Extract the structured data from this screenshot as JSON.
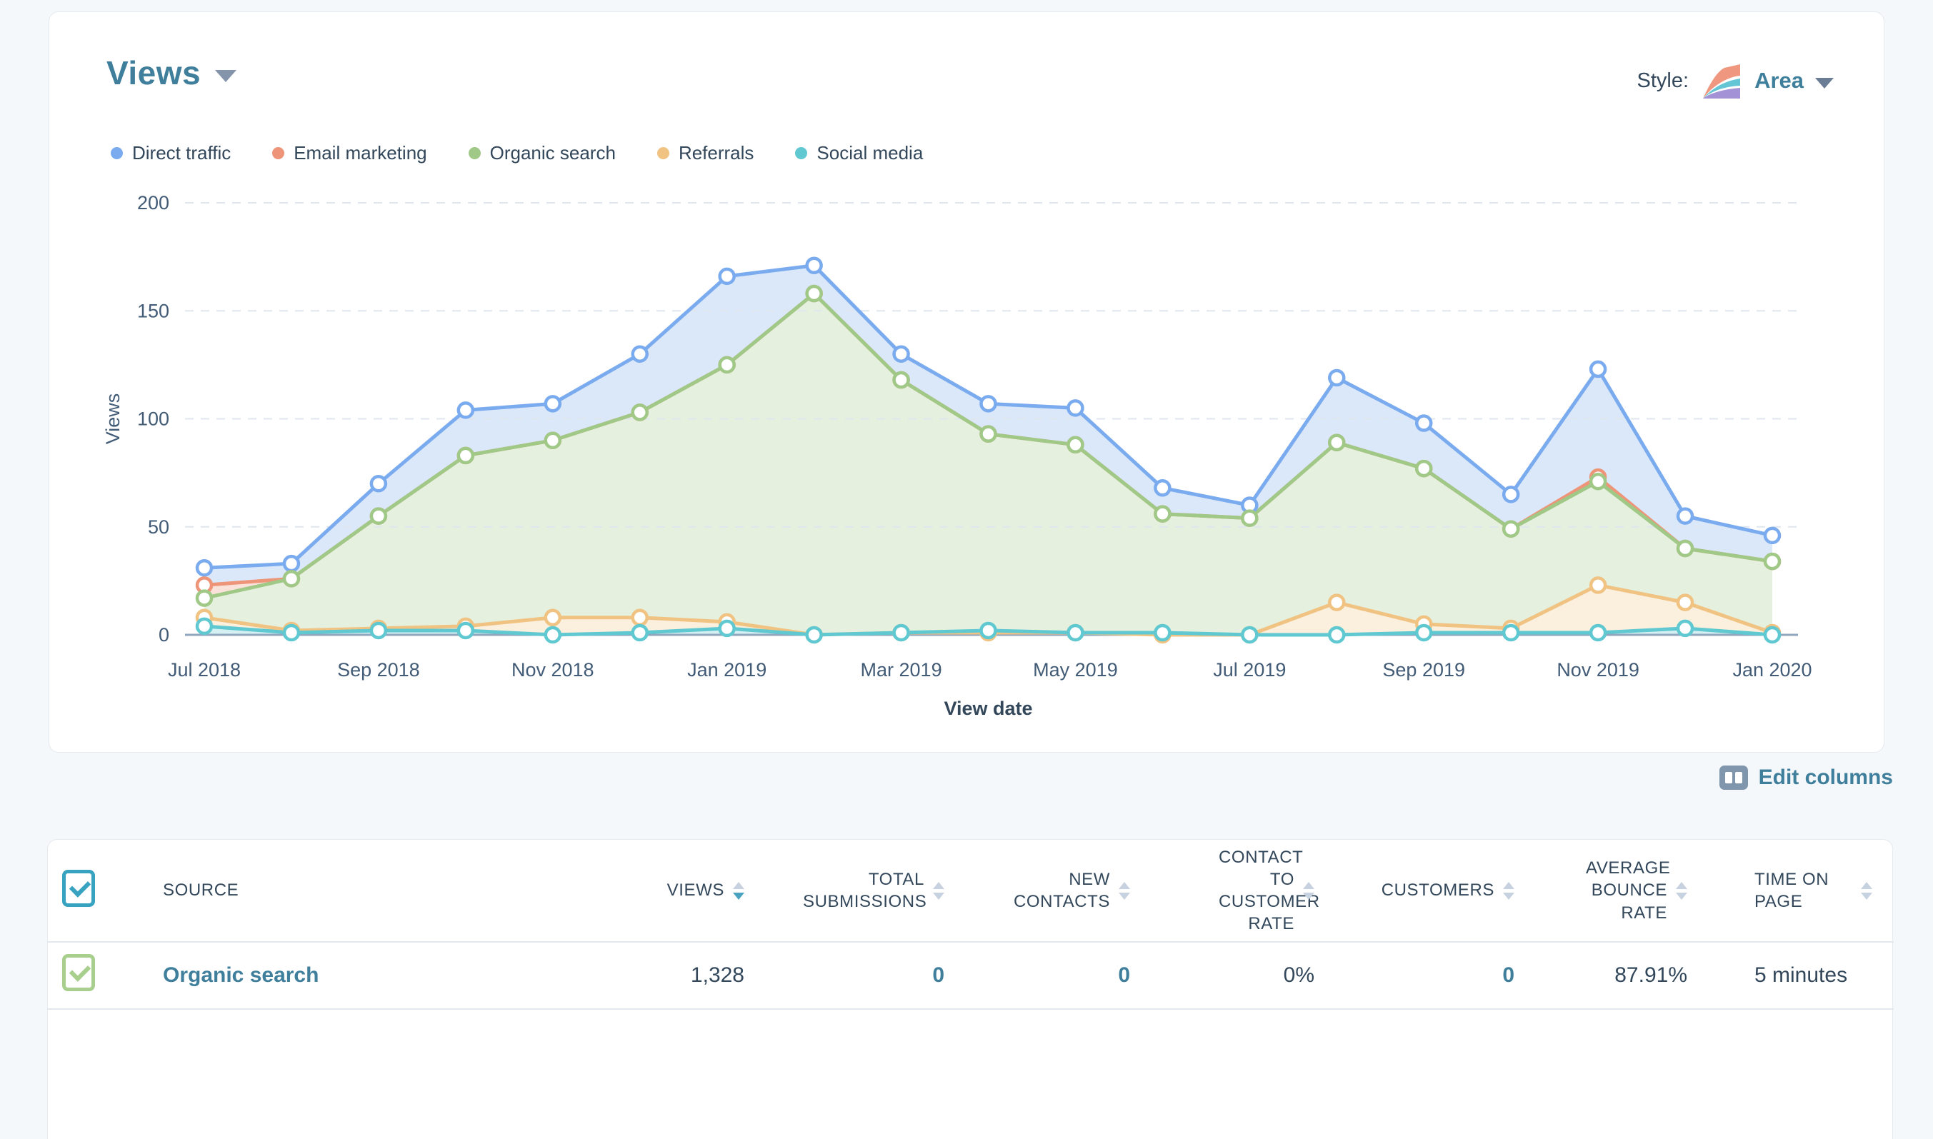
{
  "chart_card": {
    "title": "Views",
    "style_label": "Style:",
    "style_value": "Area"
  },
  "edit_columns": {
    "label": "Edit columns"
  },
  "chart_data": {
    "type": "area",
    "title": "Views",
    "xlabel": "View date",
    "ylabel": "Views",
    "ylim": [
      0,
      200
    ],
    "yticks": [
      0,
      50,
      100,
      150,
      200
    ],
    "grid": "horizontal-dashed",
    "legend_position": "top-left",
    "x": [
      "Jul 2018",
      "Aug 2018",
      "Sep 2018",
      "Oct 2018",
      "Nov 2018",
      "Dec 2018",
      "Jan 2019",
      "Feb 2019",
      "Mar 2019",
      "Apr 2019",
      "May 2019",
      "Jun 2019",
      "Jul 2019",
      "Aug 2019",
      "Sep 2019",
      "Oct 2019",
      "Nov 2019",
      "Dec 2019",
      "Jan 2020"
    ],
    "x_tick_shown_every": 2,
    "series": [
      {
        "name": "Direct traffic",
        "color": "#7aabee",
        "values": [
          31,
          33,
          70,
          104,
          107,
          130,
          166,
          171,
          130,
          107,
          105,
          68,
          60,
          119,
          98,
          65,
          123,
          55,
          46
        ]
      },
      {
        "name": "Email marketing",
        "color": "#ee9478",
        "values": [
          23,
          26,
          55,
          83,
          90,
          103,
          125,
          158,
          118,
          93,
          88,
          56,
          54,
          89,
          77,
          49,
          73,
          40,
          34
        ]
      },
      {
        "name": "Organic search",
        "color": "#a0c887",
        "values": [
          17,
          26,
          55,
          83,
          90,
          103,
          125,
          158,
          118,
          93,
          88,
          56,
          54,
          89,
          77,
          49,
          71,
          40,
          34
        ]
      },
      {
        "name": "Referrals",
        "color": "#f0c382",
        "values": [
          8,
          2,
          3,
          4,
          8,
          8,
          6,
          0,
          1,
          1,
          1,
          0,
          0,
          15,
          5,
          3,
          23,
          15,
          1
        ]
      },
      {
        "name": "Social media",
        "color": "#5fc8d0",
        "values": [
          4,
          1,
          2,
          2,
          0,
          1,
          3,
          0,
          1,
          2,
          1,
          1,
          0,
          0,
          1,
          1,
          1,
          3,
          0
        ]
      }
    ]
  },
  "table": {
    "columns": [
      {
        "key": "source",
        "label": "SOURCE",
        "align": "left",
        "sortable": false,
        "link": false
      },
      {
        "key": "views",
        "label": "VIEWS",
        "align": "right",
        "sortable": true,
        "sort": "desc",
        "link": false
      },
      {
        "key": "total_submissions",
        "label": "TOTAL SUBMISSIONS",
        "align": "right",
        "sortable": true,
        "sort": null,
        "link": true
      },
      {
        "key": "new_contacts",
        "label": "NEW CONTACTS",
        "align": "right",
        "sortable": true,
        "sort": null,
        "link": true
      },
      {
        "key": "contact_to_customer_rate",
        "label": "CONTACT TO CUSTOMER RATE",
        "align": "right",
        "sortable": true,
        "sort": null,
        "link": false
      },
      {
        "key": "customers",
        "label": "CUSTOMERS",
        "align": "right",
        "sortable": true,
        "sort": null,
        "link": true
      },
      {
        "key": "average_bounce_rate",
        "label": "AVERAGE BOUNCE RATE",
        "align": "right",
        "sortable": true,
        "sort": null,
        "link": false
      },
      {
        "key": "time_on_page",
        "label": "TIME ON PAGE",
        "align": "left",
        "sortable": true,
        "sort": null,
        "link": false
      }
    ],
    "rows": [
      {
        "checked": true,
        "source": "Organic search",
        "views": "1,328",
        "total_submissions": "0",
        "new_contacts": "0",
        "contact_to_customer_rate": "0%",
        "customers": "0",
        "average_bounce_rate": "87.91%",
        "time_on_page": "5 minutes"
      }
    ]
  },
  "colors": {
    "page_bg": "#f5f8fa",
    "accent_link": "#3f7f9c",
    "text_dark": "#33475b",
    "text_axis": "#425b76",
    "grid_line": "#dfe6ee",
    "axis_line": "#8fa6bd",
    "sort_inactive": "#c7d2e0",
    "sort_active": "#49a2bf",
    "checkbox_teal": "#38a3c1",
    "checkbox_green": "#a8cf8e",
    "icon_slate": "#8096ad",
    "style_icon_salmon": "#ef977f",
    "style_icon_teal": "#64c6d4",
    "style_icon_purple": "#a393d6"
  }
}
